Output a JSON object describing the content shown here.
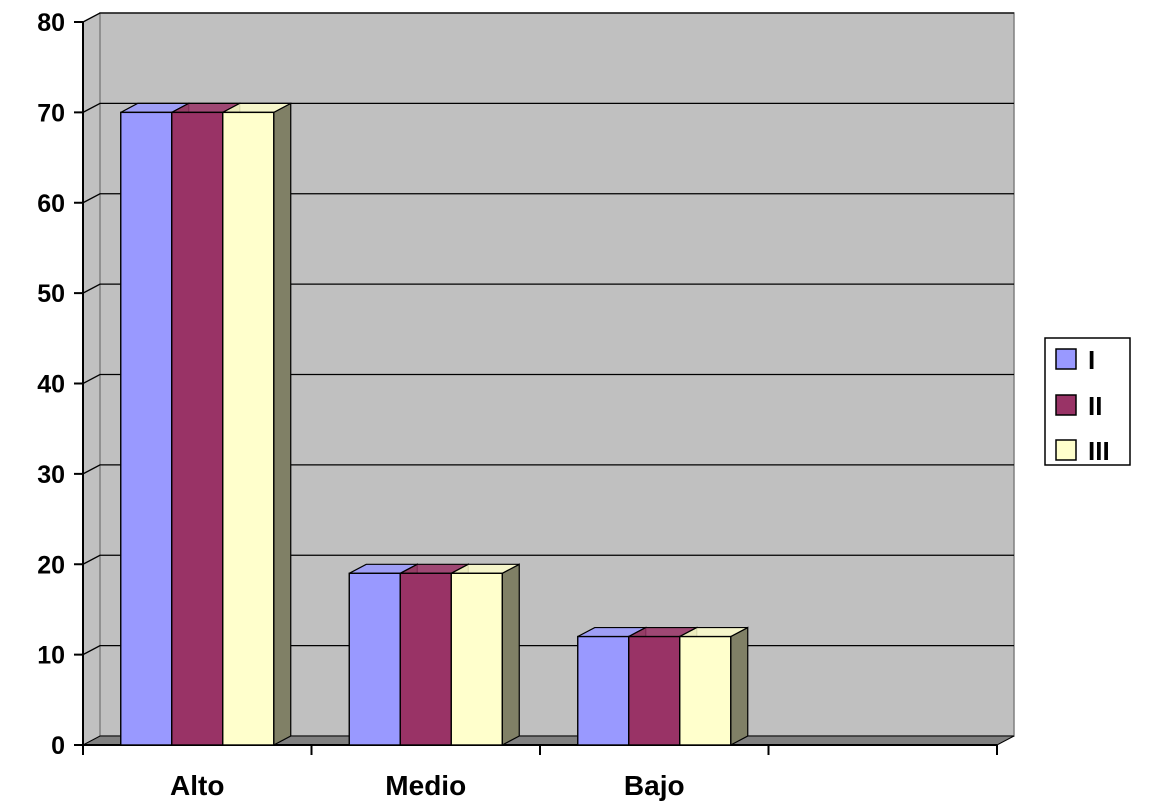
{
  "chart_data": {
    "type": "bar",
    "style": "3d-clustered-column",
    "categories": [
      "Alto",
      "Medio",
      "Bajo",
      ""
    ],
    "series": [
      {
        "name": "I",
        "values": [
          70,
          19,
          12,
          null
        ],
        "color": "#9999FF"
      },
      {
        "name": "II",
        "values": [
          70,
          19,
          12,
          null
        ],
        "color": "#993366"
      },
      {
        "name": "III",
        "values": [
          70,
          19,
          12,
          null
        ],
        "color": "#FFFFCC"
      }
    ],
    "ylim": [
      0,
      80
    ],
    "yticks": [
      "0",
      "10",
      "20",
      "30",
      "40",
      "50",
      "60",
      "70",
      "80"
    ],
    "title": "",
    "xlabel": "",
    "ylabel": "",
    "grid": true,
    "legend_position": "right",
    "colors": {
      "plot_background": "#C0C0C0",
      "floor": "#808080",
      "gridline": "#000000",
      "bar_side_shade": "#808066"
    }
  }
}
